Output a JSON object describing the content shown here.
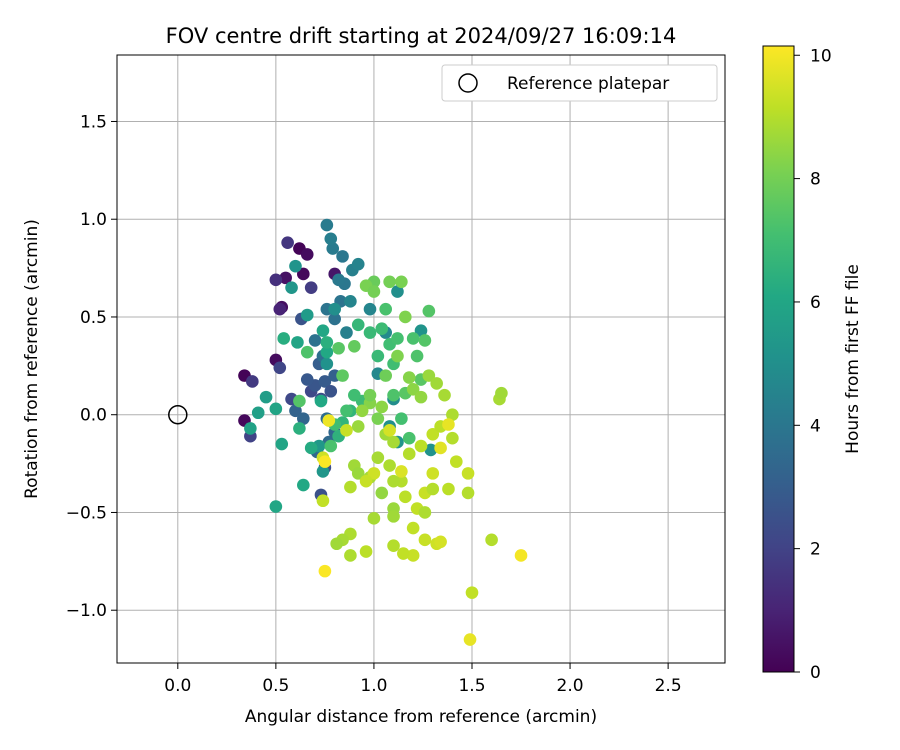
{
  "chart_data": {
    "type": "scatter",
    "title": "FOV centre drift starting at 2024/09/27 16:09:14",
    "xlabel": "Angular distance from reference (arcmin)",
    "ylabel": "Rotation from reference (arcmin)",
    "xlim": [
      -0.31,
      2.79
    ],
    "ylim": [
      -1.27,
      1.84
    ],
    "xticks": [
      0.0,
      0.5,
      1.0,
      1.5,
      2.0,
      2.5
    ],
    "xtick_labels": [
      "0.0",
      "0.5",
      "1.0",
      "1.5",
      "2.0",
      "2.5"
    ],
    "yticks": [
      -1.0,
      -0.5,
      0.0,
      0.5,
      1.0,
      1.5
    ],
    "ytick_labels": [
      "−1.0",
      "−0.5",
      "0.0",
      "0.5",
      "1.0",
      "1.5"
    ],
    "grid": true,
    "legend": {
      "placement": "top-right",
      "label": "Reference platepar"
    },
    "reference_point": {
      "x": 0.0,
      "y": 0.0
    },
    "colorbar": {
      "label": "Hours from first FF file",
      "min": 0,
      "max": 10.15,
      "ticks": [
        0,
        2,
        4,
        6,
        8,
        10
      ],
      "tick_labels": [
        "0",
        "2",
        "4",
        "6",
        "8",
        "10"
      ],
      "colormap": "viridis"
    },
    "points": [
      [
        0.62,
        0.85,
        0.1
      ],
      [
        0.66,
        0.82,
        0.3
      ],
      [
        0.64,
        0.72,
        0.2
      ],
      [
        0.34,
        0.2,
        0.1
      ],
      [
        0.34,
        -0.03,
        0.2
      ],
      [
        0.5,
        0.28,
        0.3
      ],
      [
        0.53,
        0.55,
        0.4
      ],
      [
        0.55,
        0.7,
        0.5
      ],
      [
        0.8,
        0.72,
        0.6
      ],
      [
        0.52,
        0.54,
        1.0
      ],
      [
        0.5,
        0.69,
        1.4
      ],
      [
        0.56,
        0.88,
        1.6
      ],
      [
        0.38,
        0.17,
        1.7
      ],
      [
        0.37,
        -0.11,
        2.0
      ],
      [
        0.52,
        0.24,
        2.1
      ],
      [
        0.58,
        0.08,
        2.2
      ],
      [
        0.68,
        0.65,
        1.8
      ],
      [
        0.73,
        -0.41,
        2.5
      ],
      [
        0.75,
        -0.27,
        2.4
      ],
      [
        0.63,
        0.49,
        2.6
      ],
      [
        0.68,
        0.12,
        2.2
      ],
      [
        0.7,
        0.15,
        2.7
      ],
      [
        0.73,
        0.08,
        2.4
      ],
      [
        0.75,
        0.17,
        2.9
      ],
      [
        0.78,
        0.12,
        2.6
      ],
      [
        0.8,
        0.2,
        3.1
      ],
      [
        0.72,
        0.26,
        3.0
      ],
      [
        0.66,
        0.18,
        2.8
      ],
      [
        0.6,
        0.02,
        3.2
      ],
      [
        0.64,
        -0.02,
        3.3
      ],
      [
        0.71,
        -0.19,
        3.4
      ],
      [
        0.77,
        -0.14,
        3.5
      ],
      [
        0.8,
        -0.09,
        3.4
      ],
      [
        0.76,
        -0.02,
        3.6
      ],
      [
        0.74,
        0.3,
        3.7
      ],
      [
        0.7,
        0.38,
        3.8
      ],
      [
        0.76,
        0.54,
        3.9
      ],
      [
        0.8,
        0.49,
        3.8
      ],
      [
        0.83,
        0.58,
        3.9
      ],
      [
        0.85,
        0.67,
        4.0
      ],
      [
        0.82,
        0.69,
        4.1
      ],
      [
        0.84,
        0.81,
        4.0
      ],
      [
        0.79,
        0.85,
        4.2
      ],
      [
        0.78,
        0.9,
        4.3
      ],
      [
        0.76,
        0.97,
        4.2
      ],
      [
        0.89,
        0.74,
        4.4
      ],
      [
        0.92,
        0.77,
        4.5
      ],
      [
        0.86,
        0.42,
        4.4
      ],
      [
        0.88,
        0.58,
        4.6
      ],
      [
        0.98,
        0.54,
        4.6
      ],
      [
        1.02,
        0.21,
        4.7
      ],
      [
        1.06,
        0.42,
        4.8
      ],
      [
        1.1,
        0.08,
        4.9
      ],
      [
        1.08,
        -0.06,
        5.0
      ],
      [
        1.12,
        0.63,
        5.0
      ],
      [
        1.29,
        -0.18,
        5.1
      ],
      [
        1.24,
        0.43,
        5.2
      ],
      [
        1.12,
        -0.14,
        5.2
      ],
      [
        0.8,
        0.54,
        5.0
      ],
      [
        0.76,
        0.26,
        5.1
      ],
      [
        0.74,
        -0.29,
        5.3
      ],
      [
        0.72,
        -0.16,
        5.4
      ],
      [
        0.58,
        0.65,
        5.3
      ],
      [
        0.6,
        0.76,
        5.2
      ],
      [
        0.66,
        0.51,
        5.5
      ],
      [
        0.45,
        0.09,
        5.6
      ],
      [
        0.41,
        0.01,
        5.7
      ],
      [
        0.37,
        -0.07,
        5.8
      ],
      [
        0.5,
        0.03,
        5.9
      ],
      [
        0.53,
        -0.15,
        5.9
      ],
      [
        0.61,
        0.37,
        5.9
      ],
      [
        0.74,
        0.43,
        6.0
      ],
      [
        0.76,
        0.32,
        6.1
      ],
      [
        0.73,
        0.07,
        6.1
      ],
      [
        0.68,
        -0.17,
        6.2
      ],
      [
        0.64,
        -0.36,
        6.1
      ],
      [
        0.5,
        -0.47,
        6.0
      ],
      [
        0.54,
        0.39,
        6.3
      ],
      [
        0.62,
        -0.07,
        6.4
      ],
      [
        0.76,
        0.37,
        6.4
      ],
      [
        0.82,
        -0.11,
        6.5
      ],
      [
        0.84,
        -0.04,
        6.6
      ],
      [
        0.88,
        0.02,
        6.6
      ],
      [
        0.92,
        0.46,
        6.7
      ],
      [
        0.98,
        0.42,
        6.8
      ],
      [
        1.02,
        0.3,
        6.8
      ],
      [
        1.04,
        0.44,
        6.9
      ],
      [
        1.08,
        0.36,
        7.0
      ],
      [
        1.1,
        0.26,
        7.0
      ],
      [
        1.12,
        0.39,
        7.1
      ],
      [
        1.14,
        -0.02,
        7.1
      ],
      [
        1.18,
        -0.12,
        7.2
      ],
      [
        1.2,
        0.39,
        7.2
      ],
      [
        1.22,
        0.3,
        7.3
      ],
      [
        1.26,
        0.38,
        7.4
      ],
      [
        1.28,
        0.53,
        7.4
      ],
      [
        1.24,
        0.18,
        7.5
      ],
      [
        1.16,
        0.11,
        7.5
      ],
      [
        1.1,
        0.1,
        7.3
      ],
      [
        1.06,
        0.54,
        7.2
      ],
      [
        0.94,
        0.07,
        6.9
      ],
      [
        0.9,
        0.1,
        7.0
      ],
      [
        0.86,
        0.02,
        7.1
      ],
      [
        0.8,
        -0.05,
        7.0
      ],
      [
        0.78,
        -0.16,
        7.2
      ],
      [
        0.66,
        0.32,
        7.3
      ],
      [
        0.62,
        0.07,
        7.4
      ],
      [
        0.82,
        0.34,
        7.5
      ],
      [
        0.84,
        0.2,
        7.6
      ],
      [
        0.9,
        0.35,
        7.7
      ],
      [
        1.0,
        0.68,
        7.8
      ],
      [
        1.08,
        0.68,
        8.0
      ],
      [
        1.14,
        0.68,
        8.1
      ],
      [
        1.16,
        0.5,
        8.2
      ],
      [
        0.96,
        0.66,
        8.1
      ],
      [
        1.0,
        0.63,
        8.0
      ],
      [
        1.12,
        0.3,
        8.2
      ],
      [
        1.18,
        0.19,
        8.3
      ],
      [
        1.2,
        0.13,
        8.4
      ],
      [
        1.24,
        0.09,
        8.5
      ],
      [
        1.28,
        0.2,
        8.6
      ],
      [
        1.32,
        0.16,
        8.7
      ],
      [
        1.36,
        0.1,
        8.8
      ],
      [
        1.4,
        0.0,
        8.9
      ],
      [
        1.64,
        0.08,
        8.8
      ],
      [
        1.65,
        0.11,
        8.7
      ],
      [
        0.98,
        0.06,
        8.3
      ],
      [
        1.04,
        0.04,
        8.4
      ],
      [
        0.94,
        0.02,
        8.5
      ],
      [
        0.92,
        -0.06,
        8.6
      ],
      [
        1.06,
        -0.1,
        8.7
      ],
      [
        1.1,
        -0.14,
        8.8
      ],
      [
        1.02,
        -0.22,
        8.8
      ],
      [
        1.08,
        -0.26,
        8.9
      ],
      [
        1.14,
        -0.34,
        9.0
      ],
      [
        1.18,
        -0.2,
        9.0
      ],
      [
        1.24,
        -0.16,
        9.1
      ],
      [
        1.3,
        -0.1,
        9.2
      ],
      [
        1.34,
        -0.06,
        9.1
      ],
      [
        1.4,
        -0.12,
        9.0
      ],
      [
        1.42,
        -0.24,
        9.2
      ],
      [
        1.48,
        -0.3,
        9.3
      ],
      [
        1.3,
        -0.3,
        9.4
      ],
      [
        1.26,
        -0.4,
        9.3
      ],
      [
        1.22,
        -0.48,
        9.2
      ],
      [
        1.16,
        -0.42,
        9.1
      ],
      [
        1.1,
        -0.34,
        8.9
      ],
      [
        0.98,
        -0.32,
        8.8
      ],
      [
        0.9,
        -0.26,
        8.7
      ],
      [
        0.92,
        -0.3,
        8.6
      ],
      [
        1.04,
        -0.4,
        8.5
      ],
      [
        1.1,
        -0.48,
        8.6
      ],
      [
        1.1,
        -0.52,
        8.7
      ],
      [
        1.0,
        -0.53,
        8.8
      ],
      [
        1.26,
        -0.5,
        8.9
      ],
      [
        1.3,
        -0.38,
        9.0
      ],
      [
        1.38,
        -0.38,
        9.1
      ],
      [
        1.48,
        -0.4,
        9.0
      ],
      [
        1.2,
        -0.58,
        9.2
      ],
      [
        1.26,
        -0.64,
        9.3
      ],
      [
        1.32,
        -0.66,
        9.4
      ],
      [
        1.34,
        -0.65,
        9.5
      ],
      [
        1.2,
        -0.72,
        9.3
      ],
      [
        1.15,
        -0.71,
        9.2
      ],
      [
        1.1,
        -0.67,
        9.0
      ],
      [
        0.88,
        -0.61,
        8.9
      ],
      [
        0.84,
        -0.64,
        8.8
      ],
      [
        0.81,
        -0.66,
        8.7
      ],
      [
        0.88,
        -0.72,
        8.9
      ],
      [
        0.96,
        -0.7,
        9.1
      ],
      [
        0.88,
        -0.37,
        9.0
      ],
      [
        0.74,
        -0.44,
        9.2
      ],
      [
        0.74,
        -0.22,
        9.4
      ],
      [
        1.08,
        -0.08,
        9.5
      ],
      [
        1.14,
        -0.29,
        9.6
      ],
      [
        1.34,
        -0.17,
        9.7
      ],
      [
        1.38,
        -0.05,
        9.8
      ],
      [
        1.6,
        -0.64,
        9.0
      ],
      [
        1.5,
        -0.91,
        9.2
      ],
      [
        1.49,
        -1.15,
        9.8
      ],
      [
        1.75,
        -0.72,
        10.0
      ],
      [
        0.75,
        -0.8,
        10.1
      ],
      [
        0.77,
        -0.03,
        9.9
      ],
      [
        0.75,
        -0.24,
        10.1
      ],
      [
        1.0,
        -0.3,
        9.4
      ],
      [
        0.96,
        -0.34,
        9.3
      ],
      [
        0.86,
        -0.08,
        9.3
      ],
      [
        0.98,
        0.1,
        8.0
      ],
      [
        1.02,
        -0.02,
        8.1
      ],
      [
        1.06,
        0.2,
        7.9
      ]
    ]
  }
}
